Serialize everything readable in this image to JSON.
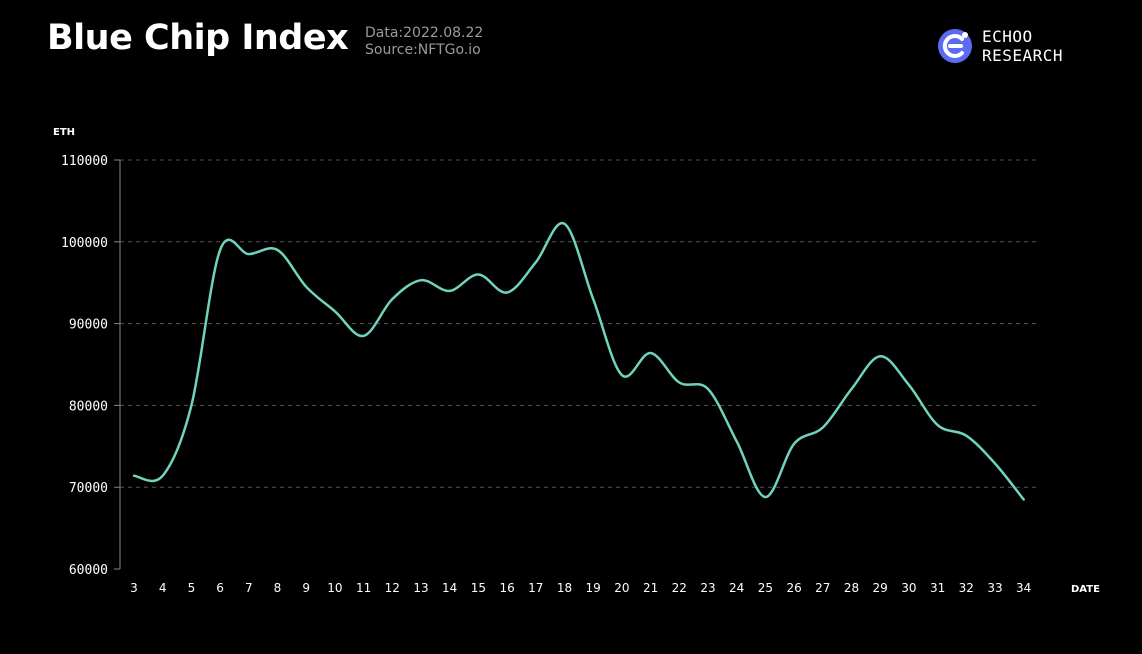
{
  "header": {
    "title": "Blue Chip Index",
    "date_line": "Data:2022.08.22",
    "source_line": "Source:NFTGo.io"
  },
  "brand": {
    "line1": "ECHOO",
    "line2": "RESEARCH",
    "icon": "echoo-logo-icon",
    "color": "#5b6cf0"
  },
  "chart_data": {
    "type": "line",
    "title": "Blue Chip Index",
    "xlabel": "DATE",
    "ylabel": "ETH",
    "x": [
      3,
      4,
      5,
      6,
      7,
      8,
      9,
      10,
      11,
      12,
      13,
      14,
      15,
      16,
      17,
      18,
      19,
      20,
      21,
      22,
      23,
      24,
      25,
      26,
      27,
      28,
      29,
      30,
      31,
      32,
      33,
      34
    ],
    "series": [
      {
        "values": [
          71400,
          71400,
          80000,
          99000,
          98500,
          99000,
          94500,
          91500,
          88500,
          93000,
          95300,
          94000,
          96000,
          93800,
          97500,
          102200,
          93000,
          83700,
          86400,
          82800,
          82000,
          75600,
          68800,
          75300,
          77300,
          82000,
          86000,
          82500,
          77600,
          76300,
          72900,
          68500
        ]
      }
    ],
    "ylim": [
      60000,
      110000
    ],
    "yticks": [
      "60000",
      "70000",
      "80000",
      "90000",
      "100000",
      "110000"
    ],
    "grid": "horizontal-dashed",
    "line_color": "#6fd3bd"
  }
}
